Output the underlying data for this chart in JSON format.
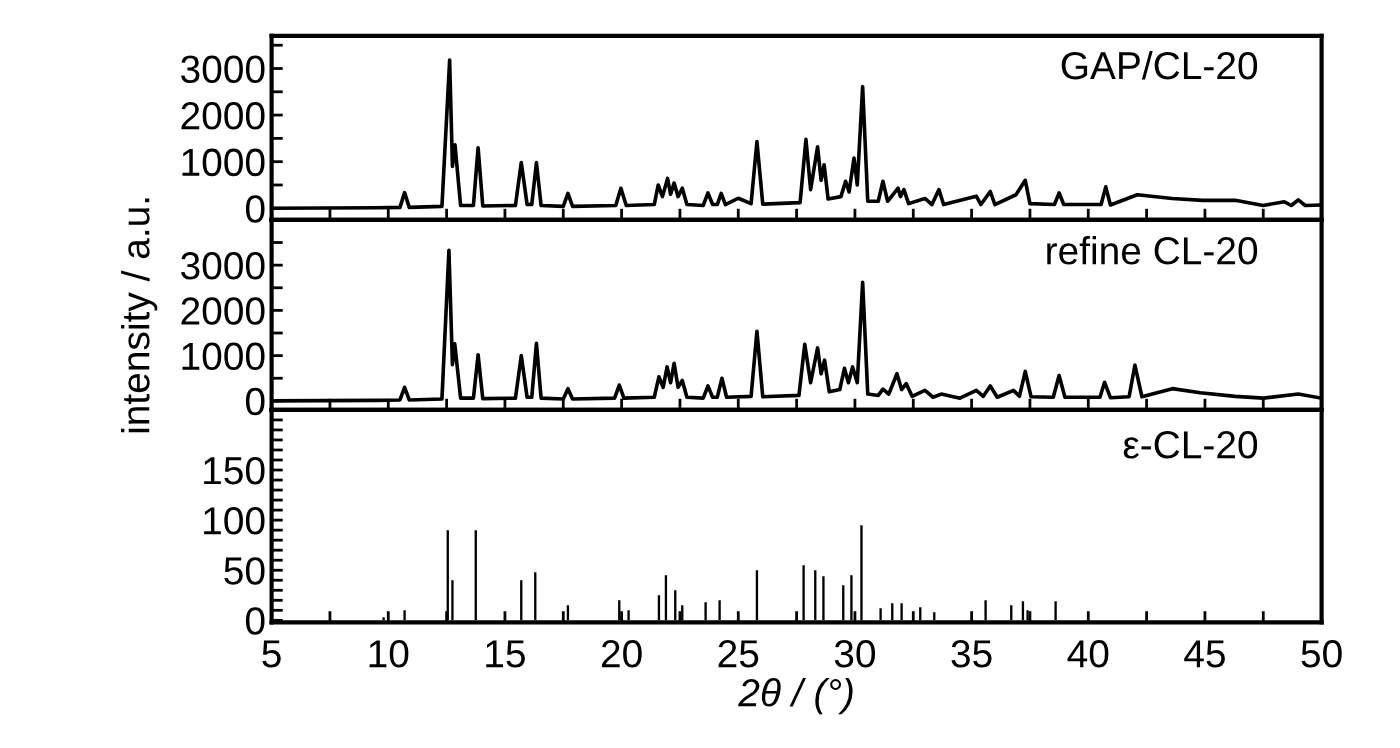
{
  "chart_data": [
    {
      "type": "line",
      "annotations": [
        "GAP/CL-20"
      ],
      "xlim": [
        5,
        50
      ],
      "ylim": [
        -250,
        3700
      ],
      "tick_labels": "y",
      "xticks": [
        5,
        {
          "value": 7.5,
          "label": null
        },
        10,
        {
          "value": 12.5,
          "label": null
        },
        15,
        {
          "value": 17.5,
          "label": null
        },
        20,
        {
          "value": 22.5,
          "label": null
        },
        25,
        {
          "value": 27.5,
          "label": null
        },
        30,
        {
          "value": 32.5,
          "label": null
        },
        35,
        {
          "value": 37.5,
          "label": null
        },
        40,
        {
          "value": 42.5,
          "label": null
        },
        45,
        {
          "value": 47.5,
          "label": null
        },
        50
      ],
      "yticks": [
        0,
        {
          "value": 500,
          "label": null
        },
        1000,
        {
          "value": 1500,
          "label": null
        },
        2000,
        {
          "value": 2500,
          "label": null
        },
        3000,
        {
          "value": 3500,
          "label": null
        }
      ],
      "series": [
        {
          "color": "#000000",
          "x": [
            5,
            9.5,
            10.5,
            10.7,
            10.9,
            12.3,
            12.63,
            12.75,
            12.86,
            13.1,
            13.65,
            13.85,
            14.05,
            15.45,
            15.7,
            15.95,
            16.15,
            16.35,
            16.55,
            17.5,
            17.7,
            17.9,
            19.75,
            19.97,
            20.2,
            21.4,
            21.57,
            21.75,
            21.97,
            22.1,
            22.25,
            22.42,
            22.6,
            22.8,
            23.5,
            23.7,
            23.9,
            24.1,
            24.27,
            24.45,
            25.0,
            25.55,
            25.8,
            26.05,
            27.65,
            27.9,
            28.1,
            28.4,
            28.55,
            28.68,
            28.85,
            29.4,
            29.6,
            29.75,
            29.96,
            30.1,
            30.33,
            30.55,
            31.0,
            31.2,
            31.4,
            31.85,
            31.95,
            32.1,
            32.3,
            33.0,
            33.3,
            33.6,
            33.8,
            35.2,
            35.4,
            35.8,
            36.0,
            36.9,
            37.3,
            37.5,
            38.55,
            38.75,
            38.95,
            40.55,
            40.75,
            40.95,
            42.1,
            43.6,
            44.9,
            46.3,
            47.5,
            48.4,
            48.7,
            49.0,
            49.3,
            50
          ],
          "values": [
            0,
            10,
            20,
            335,
            20,
            40,
            3180,
            900,
            1360,
            60,
            60,
            1300,
            50,
            60,
            980,
            80,
            80,
            980,
            60,
            40,
            320,
            40,
            60,
            430,
            60,
            80,
            500,
            250,
            640,
            300,
            540,
            250,
            430,
            80,
            60,
            330,
            80,
            80,
            320,
            80,
            215,
            100,
            1430,
            90,
            120,
            1480,
            400,
            1320,
            600,
            935,
            200,
            250,
            580,
            350,
            1080,
            500,
            2610,
            150,
            150,
            580,
            150,
            430,
            250,
            400,
            100,
            210,
            80,
            400,
            80,
            260,
            80,
            360,
            80,
            290,
            600,
            100,
            80,
            330,
            80,
            80,
            460,
            70,
            290,
            210,
            170,
            170,
            60,
            140,
            60,
            180,
            60,
            70
          ]
        }
      ]
    },
    {
      "type": "line",
      "annotations": [
        "refine CL-20"
      ],
      "ylabel": "intensity / a.u.",
      "xlim": [
        5,
        50
      ],
      "ylim": [
        -200,
        4000
      ],
      "tick_labels": "y",
      "xticks": [
        5,
        {
          "value": 7.5,
          "label": null
        },
        10,
        {
          "value": 12.5,
          "label": null
        },
        15,
        {
          "value": 17.5,
          "label": null
        },
        20,
        {
          "value": 22.5,
          "label": null
        },
        25,
        {
          "value": 27.5,
          "label": null
        },
        30,
        {
          "value": 32.5,
          "label": null
        },
        35,
        {
          "value": 37.5,
          "label": null
        },
        40,
        {
          "value": 42.5,
          "label": null
        },
        45,
        {
          "value": 47.5,
          "label": null
        },
        50
      ],
      "yticks": [
        0,
        {
          "value": 500,
          "label": null
        },
        1000,
        {
          "value": 1500,
          "label": null
        },
        2000,
        {
          "value": 2500,
          "label": null
        },
        3000,
        {
          "value": 3500,
          "label": null
        }
      ],
      "series": [
        {
          "color": "#000000",
          "x": [
            5,
            9.5,
            10.5,
            10.7,
            10.9,
            12.3,
            12.6,
            12.75,
            12.85,
            13.1,
            13.65,
            13.85,
            14.05,
            15.45,
            15.7,
            15.95,
            16.15,
            16.35,
            16.55,
            17.5,
            17.7,
            17.9,
            19.7,
            19.9,
            20.1,
            21.4,
            21.6,
            21.78,
            21.95,
            22.1,
            22.25,
            22.42,
            22.6,
            22.8,
            23.5,
            23.7,
            23.9,
            24.1,
            24.3,
            24.5,
            25.55,
            25.8,
            26.05,
            27.6,
            27.85,
            28.1,
            28.4,
            28.55,
            28.7,
            28.9,
            29.35,
            29.55,
            29.72,
            29.9,
            30.1,
            30.33,
            30.55,
            31.0,
            31.2,
            31.45,
            31.8,
            32.0,
            32.2,
            32.45,
            33.0,
            33.35,
            33.7,
            34.5,
            35.2,
            35.5,
            35.8,
            36.1,
            36.8,
            37.05,
            37.3,
            37.55,
            38.5,
            38.75,
            39.0,
            40.5,
            40.7,
            40.95,
            41.75,
            42.0,
            42.3,
            43.6,
            44.8,
            46.3,
            47.5,
            49.0,
            50
          ],
          "values": [
            0,
            10,
            20,
            300,
            20,
            40,
            3330,
            800,
            1260,
            60,
            60,
            1020,
            50,
            60,
            1000,
            80,
            80,
            1270,
            60,
            40,
            270,
            40,
            60,
            350,
            60,
            80,
            530,
            300,
            750,
            400,
            830,
            300,
            450,
            80,
            60,
            330,
            80,
            80,
            500,
            80,
            100,
            1540,
            90,
            120,
            1250,
            400,
            1170,
            600,
            900,
            200,
            250,
            720,
            400,
            750,
            400,
            2620,
            150,
            120,
            260,
            150,
            600,
            250,
            380,
            100,
            230,
            80,
            150,
            60,
            230,
            100,
            330,
            80,
            230,
            100,
            650,
            90,
            80,
            560,
            80,
            80,
            410,
            70,
            90,
            790,
            90,
            270,
            180,
            100,
            60,
            150,
            60
          ]
        }
      ]
    },
    {
      "type": "bar",
      "annotations": [
        "ε-CL-20"
      ],
      "xlabel": "2θ / (°)",
      "xlim": [
        5,
        50
      ],
      "ylim": [
        -2,
        210
      ],
      "xticks": [
        5,
        {
          "value": 7.5,
          "label": null
        },
        10,
        {
          "value": 12.5,
          "label": null
        },
        15,
        {
          "value": 17.5,
          "label": null
        },
        20,
        {
          "value": 22.5,
          "label": null
        },
        25,
        {
          "value": 27.5,
          "label": null
        },
        30,
        {
          "value": 32.5,
          "label": null
        },
        35,
        {
          "value": 37.5,
          "label": null
        },
        40,
        {
          "value": 42.5,
          "label": null
        },
        45,
        {
          "value": 47.5,
          "label": null
        },
        50
      ],
      "yticks": [
        0,
        {
          "value": 10,
          "label": null
        },
        {
          "value": 20,
          "label": null
        },
        {
          "value": 30,
          "label": null
        },
        {
          "value": 40,
          "label": null
        },
        50,
        {
          "value": 60,
          "label": null
        },
        {
          "value": 70,
          "label": null
        },
        {
          "value": 80,
          "label": null
        },
        {
          "value": 90,
          "label": null
        },
        100,
        {
          "value": 110,
          "label": null
        },
        {
          "value": 120,
          "label": null
        },
        {
          "value": 130,
          "label": null
        },
        {
          "value": 140,
          "label": null
        },
        150,
        {
          "value": 160,
          "label": null
        },
        {
          "value": 170,
          "label": null
        },
        {
          "value": 180,
          "label": null
        },
        {
          "value": 190,
          "label": null
        },
        {
          "value": 200,
          "label": null
        }
      ],
      "series": [
        {
          "color": "#000000",
          "x": [
            9.8,
            10.7,
            12.55,
            12.75,
            13.75,
            15.7,
            16.3,
            17.7,
            19.9,
            20.3,
            21.6,
            21.9,
            22.3,
            22.6,
            23.6,
            24.2,
            25.8,
            27.8,
            28.3,
            28.65,
            29.5,
            29.85,
            30.28,
            31.1,
            31.6,
            32.0,
            32.8,
            33.4,
            35.6,
            36.7,
            37.2,
            37.4,
            38.6
          ],
          "values": [
            3,
            10,
            90,
            40,
            90,
            40,
            48,
            15,
            20,
            10,
            25,
            45,
            30,
            15,
            18,
            20,
            50,
            55,
            50,
            44,
            35,
            45,
            95,
            12,
            17,
            17,
            13,
            8,
            20,
            15,
            19,
            10,
            19
          ]
        }
      ]
    }
  ]
}
